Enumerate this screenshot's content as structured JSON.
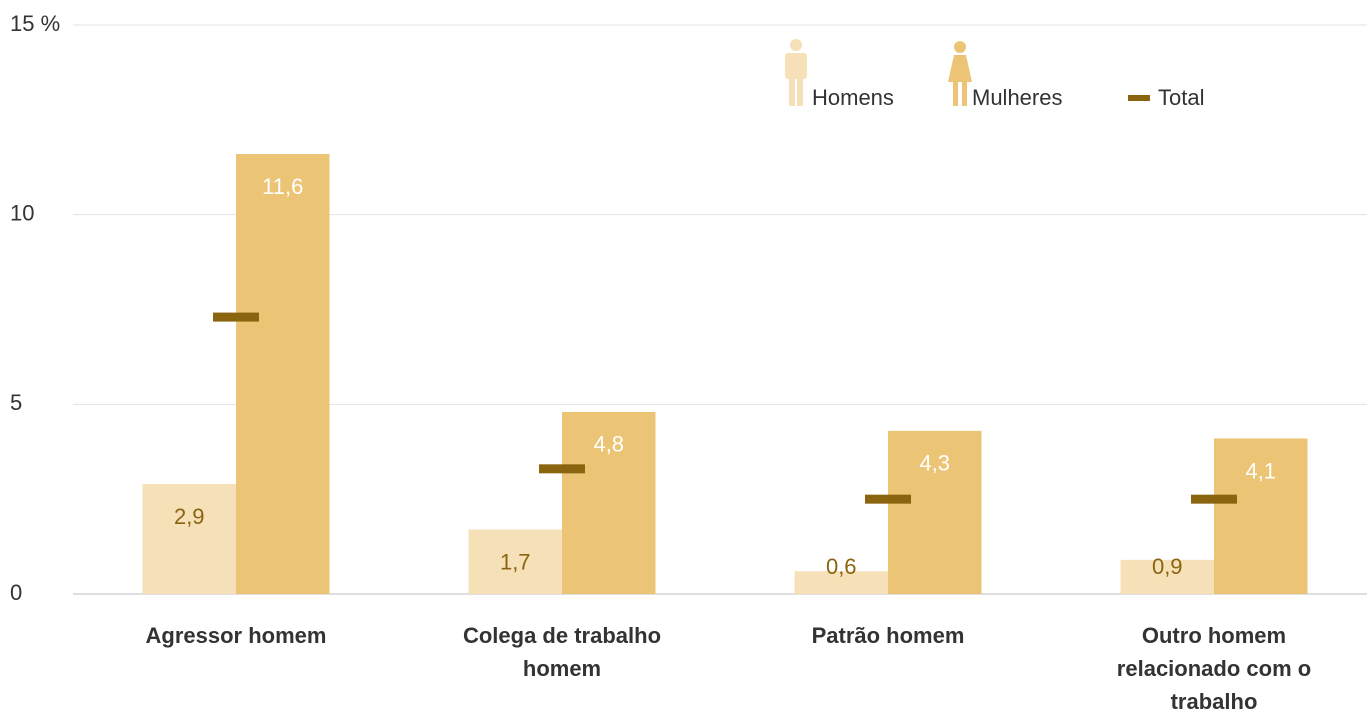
{
  "chart_data": {
    "type": "bar",
    "categories": [
      "Agressor homem",
      "Colega de trabalho homem",
      "Patrão homem",
      "Outro homem relacionado com o trabalho"
    ],
    "series": [
      {
        "name": "Homens",
        "color": "#f5e0b8",
        "label_color": "#8b6410",
        "values": [
          2.9,
          1.7,
          0.6,
          0.9
        ],
        "value_labels": [
          "2,9",
          "1,7",
          "0,6",
          "0,9"
        ]
      },
      {
        "name": "Mulheres",
        "color": "#ecc475",
        "label_color": "#ffffff",
        "values": [
          11.6,
          4.8,
          4.3,
          4.1
        ],
        "value_labels": [
          "11,6",
          "4,8",
          "4,3",
          "4,1"
        ]
      },
      {
        "name": "Total",
        "type": "marker",
        "color": "#8b6410",
        "values": [
          7.3,
          3.3,
          2.5,
          2.5
        ]
      }
    ],
    "ylim": [
      0,
      15
    ],
    "yticks": [
      0,
      5,
      10,
      {
        "value": 15,
        "label": "15 %"
      }
    ],
    "grid": true
  }
}
